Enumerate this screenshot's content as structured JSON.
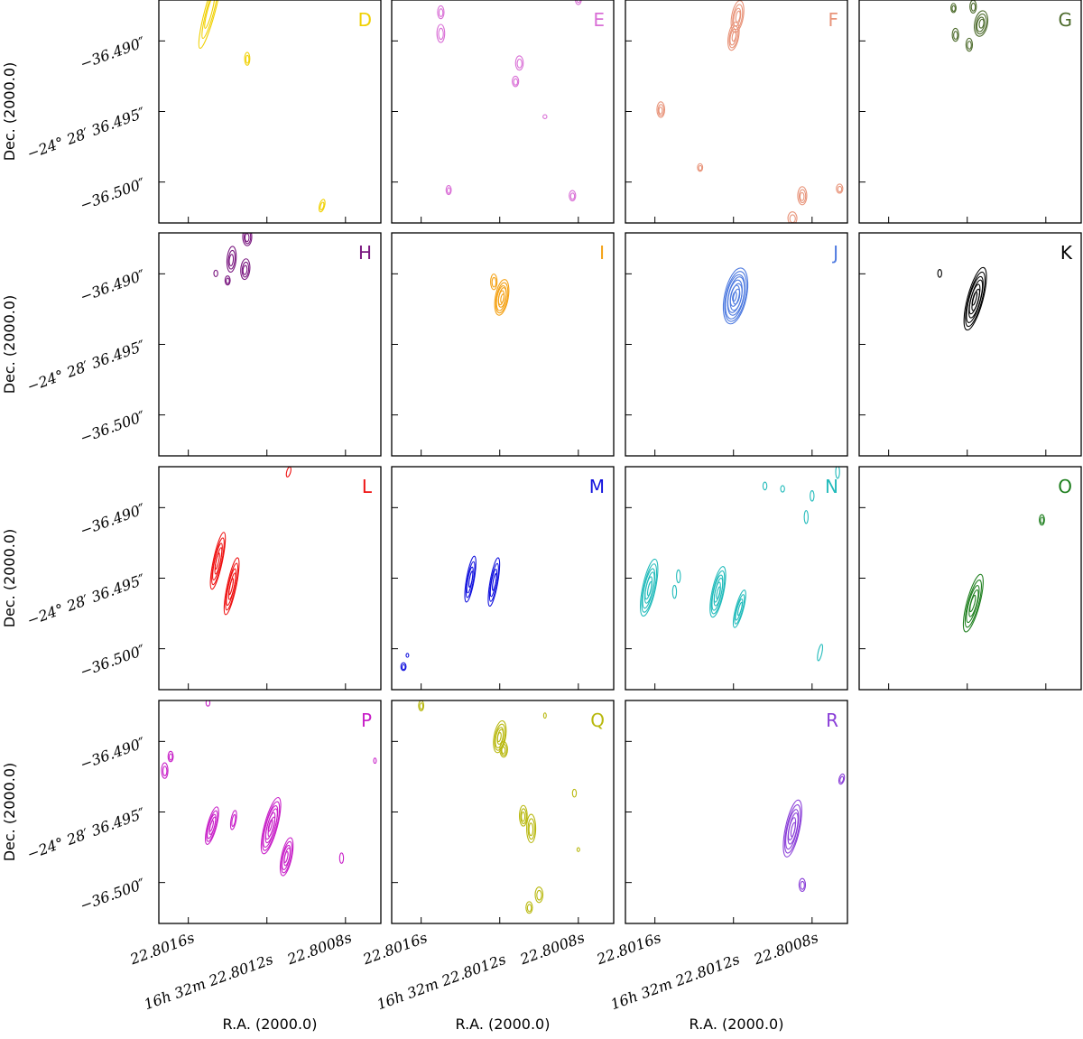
{
  "chart_data": {
    "type": "contour-grid",
    "xlabel": "R.A. (2000.0)",
    "ylabel": "Dec. (2000.0)",
    "x_ticks": [
      {
        "value": 22.8016,
        "label": "22.8016s"
      },
      {
        "value": 22.8012,
        "label": "16h 32m 22.8012s"
      },
      {
        "value": 22.8008,
        "label": "22.8008s"
      }
    ],
    "y_ticks": [
      {
        "value": -36.49,
        "label": "−36.490″"
      },
      {
        "value": -36.495,
        "label": "−24° 28′ 36.495″"
      },
      {
        "value": -36.5,
        "label": "−36.500″"
      }
    ],
    "xlim": [
      22.80175,
      22.80062
    ],
    "ylim": [
      -36.5029,
      -36.4871
    ],
    "panels": [
      {
        "label": "D",
        "color": "#f0d000",
        "sources": [
          {
            "ra": 22.80149,
            "dec": -36.4879,
            "width": 0.8,
            "length": 6,
            "angle": 15,
            "levels": 3
          },
          {
            "ra": 22.8013,
            "dec": -36.4913,
            "width": 0.4,
            "length": 1,
            "angle": 0,
            "levels": 2
          },
          {
            "ra": 22.80092,
            "dec": -36.5017,
            "width": 0.4,
            "length": 1,
            "angle": 15,
            "levels": 2
          }
        ]
      },
      {
        "label": "E",
        "color": "#d96fd6",
        "sources": [
          {
            "ra": 22.8015,
            "dec": -36.488,
            "width": 0.5,
            "length": 1,
            "angle": 0,
            "levels": 2
          },
          {
            "ra": 22.8015,
            "dec": -36.4895,
            "width": 0.6,
            "length": 1.4,
            "angle": 0,
            "levels": 2
          },
          {
            "ra": 22.8011,
            "dec": -36.4916,
            "width": 0.6,
            "length": 1.1,
            "angle": 0,
            "levels": 2
          },
          {
            "ra": 22.80112,
            "dec": -36.4929,
            "width": 0.5,
            "length": 0.8,
            "angle": 0,
            "levels": 2
          },
          {
            "ra": 22.80097,
            "dec": -36.4954,
            "width": 0.3,
            "length": 0.3,
            "angle": 0,
            "levels": 1
          },
          {
            "ra": 22.8008,
            "dec": -36.487,
            "width": 0.5,
            "length": 1,
            "angle": 0,
            "levels": 2
          },
          {
            "ra": 22.80146,
            "dec": -36.5006,
            "width": 0.4,
            "length": 0.7,
            "angle": 0,
            "levels": 2
          },
          {
            "ra": 22.80083,
            "dec": -36.501,
            "width": 0.5,
            "length": 0.8,
            "angle": 0,
            "levels": 2
          }
        ]
      },
      {
        "label": "F",
        "color": "#e8947a",
        "sources": [
          {
            "ra": 22.80118,
            "dec": -36.4883,
            "width": 0.9,
            "length": 2.5,
            "angle": 10,
            "levels": 4
          },
          {
            "ra": 22.8012,
            "dec": -36.4897,
            "width": 0.8,
            "length": 2.2,
            "angle": 10,
            "levels": 4
          },
          {
            "ra": 22.80157,
            "dec": -36.4949,
            "width": 0.6,
            "length": 1.2,
            "angle": 0,
            "levels": 3
          },
          {
            "ra": 22.80137,
            "dec": -36.499,
            "width": 0.4,
            "length": 0.6,
            "angle": 0,
            "levels": 2
          },
          {
            "ra": 22.80085,
            "dec": -36.501,
            "width": 0.7,
            "length": 1.4,
            "angle": 0,
            "levels": 3
          },
          {
            "ra": 22.8009,
            "dec": -36.5026,
            "width": 0.7,
            "length": 1,
            "angle": 0,
            "levels": 2
          },
          {
            "ra": 22.80066,
            "dec": -36.5005,
            "width": 0.5,
            "length": 0.7,
            "angle": 0,
            "levels": 2
          }
        ]
      },
      {
        "label": "G",
        "color": "#4d6b2c",
        "sources": [
          {
            "ra": 22.80117,
            "dec": -36.4876,
            "width": 0.5,
            "length": 1,
            "angle": 0,
            "levels": 2
          },
          {
            "ra": 22.80127,
            "dec": -36.4877,
            "width": 0.4,
            "length": 0.7,
            "angle": 0,
            "levels": 2
          },
          {
            "ra": 22.80113,
            "dec": -36.4888,
            "width": 1.0,
            "length": 2.0,
            "angle": 10,
            "levels": 4
          },
          {
            "ra": 22.80126,
            "dec": -36.4896,
            "width": 0.5,
            "length": 1,
            "angle": 0,
            "levels": 2
          },
          {
            "ra": 22.80119,
            "dec": -36.4903,
            "width": 0.5,
            "length": 1,
            "angle": 0,
            "levels": 2
          }
        ]
      },
      {
        "label": "H",
        "color": "#7a1880",
        "sources": [
          {
            "ra": 22.8013,
            "dec": -36.4874,
            "width": 0.7,
            "length": 1.4,
            "angle": 0,
            "levels": 3
          },
          {
            "ra": 22.80138,
            "dec": -36.489,
            "width": 0.7,
            "length": 2.0,
            "angle": 5,
            "levels": 3
          },
          {
            "ra": 22.80131,
            "dec": -36.4897,
            "width": 0.7,
            "length": 1.6,
            "angle": 5,
            "levels": 3
          },
          {
            "ra": 22.8014,
            "dec": -36.4905,
            "width": 0.4,
            "length": 0.7,
            "angle": 0,
            "levels": 2
          },
          {
            "ra": 22.80146,
            "dec": -36.49,
            "width": 0.3,
            "length": 0.5,
            "angle": 0,
            "levels": 1
          }
        ]
      },
      {
        "label": "I",
        "color": "#f4a114",
        "sources": [
          {
            "ra": 22.80119,
            "dec": -36.4917,
            "width": 1.0,
            "length": 2.8,
            "angle": 10,
            "levels": 6
          },
          {
            "ra": 22.80123,
            "dec": -36.4906,
            "width": 0.5,
            "length": 1.2,
            "angle": 0,
            "levels": 2
          }
        ]
      },
      {
        "label": "J",
        "color": "#4f7be0",
        "sources": [
          {
            "ra": 22.80119,
            "dec": -36.4916,
            "width": 1.7,
            "length": 4.4,
            "angle": 12,
            "levels": 9
          }
        ]
      },
      {
        "label": "K",
        "color": "#000000",
        "sources": [
          {
            "ra": 22.80116,
            "dec": -36.4918,
            "width": 1.2,
            "length": 5.0,
            "angle": 15,
            "levels": 7
          },
          {
            "ra": 22.80134,
            "dec": -36.49,
            "width": 0.3,
            "length": 0.6,
            "angle": 0,
            "levels": 1
          }
        ]
      },
      {
        "label": "L",
        "color": "#ee1111",
        "sources": [
          {
            "ra": 22.80145,
            "dec": -36.4938,
            "width": 0.7,
            "length": 4.5,
            "angle": 12,
            "levels": 5
          },
          {
            "ra": 22.80138,
            "dec": -36.4956,
            "width": 0.7,
            "length": 4.5,
            "angle": 12,
            "levels": 5
          },
          {
            "ra": 22.80109,
            "dec": -36.4875,
            "width": 0.3,
            "length": 0.8,
            "angle": 15,
            "levels": 1
          }
        ]
      },
      {
        "label": "M",
        "color": "#1111dd",
        "sources": [
          {
            "ra": 22.80135,
            "dec": -36.4951,
            "width": 0.6,
            "length": 3.6,
            "angle": 10,
            "levels": 4
          },
          {
            "ra": 22.80123,
            "dec": -36.4953,
            "width": 0.6,
            "length": 3.8,
            "angle": 10,
            "levels": 4
          },
          {
            "ra": 22.80169,
            "dec": -36.5013,
            "width": 0.4,
            "length": 0.6,
            "angle": 0,
            "levels": 2
          },
          {
            "ra": 22.80167,
            "dec": -36.5005,
            "width": 0.2,
            "length": 0.3,
            "angle": 0,
            "levels": 1
          }
        ]
      },
      {
        "label": "N",
        "color": "#22bbbb",
        "sources": [
          {
            "ra": 22.80163,
            "dec": -36.4957,
            "width": 1.0,
            "length": 4.5,
            "angle": 12,
            "levels": 6
          },
          {
            "ra": 22.80148,
            "dec": -36.4949,
            "width": 0.3,
            "length": 1.0,
            "angle": 0,
            "levels": 1
          },
          {
            "ra": 22.8015,
            "dec": -36.496,
            "width": 0.3,
            "length": 1.0,
            "angle": 0,
            "levels": 1
          },
          {
            "ra": 22.80128,
            "dec": -36.496,
            "width": 0.9,
            "length": 4.0,
            "angle": 12,
            "levels": 6
          },
          {
            "ra": 22.80117,
            "dec": -36.4972,
            "width": 0.6,
            "length": 3.0,
            "angle": 15,
            "levels": 4
          },
          {
            "ra": 22.80104,
            "dec": -36.4885,
            "width": 0.3,
            "length": 0.6,
            "angle": 0,
            "levels": 1
          },
          {
            "ra": 22.80095,
            "dec": -36.4887,
            "width": 0.3,
            "length": 0.5,
            "angle": 0,
            "levels": 1
          },
          {
            "ra": 22.8008,
            "dec": -36.4892,
            "width": 0.3,
            "length": 0.8,
            "angle": 0,
            "levels": 1
          },
          {
            "ra": 22.80083,
            "dec": -36.4907,
            "width": 0.3,
            "length": 1.0,
            "angle": 0,
            "levels": 1
          },
          {
            "ra": 22.80067,
            "dec": -36.4875,
            "width": 0.3,
            "length": 1.0,
            "angle": 0,
            "levels": 1
          },
          {
            "ra": 22.80076,
            "dec": -36.5003,
            "width": 0.3,
            "length": 1.3,
            "angle": 12,
            "levels": 1
          }
        ]
      },
      {
        "label": "O",
        "color": "#1e7f1e",
        "sources": [
          {
            "ra": 22.80117,
            "dec": -36.4968,
            "width": 1.0,
            "length": 4.6,
            "angle": 15,
            "levels": 5
          },
          {
            "ra": 22.80082,
            "dec": -36.4909,
            "width": 0.4,
            "length": 0.8,
            "angle": 0,
            "levels": 2
          }
        ]
      },
      {
        "label": "P",
        "color": "#c820c8",
        "sources": [
          {
            "ra": 22.8015,
            "dec": -36.4873,
            "width": 0.3,
            "length": 0.5,
            "angle": 0,
            "levels": 1
          },
          {
            "ra": 22.80169,
            "dec": -36.4911,
            "width": 0.4,
            "length": 0.8,
            "angle": 0,
            "levels": 2
          },
          {
            "ra": 22.80172,
            "dec": -36.4921,
            "width": 0.5,
            "length": 1.2,
            "angle": 0,
            "levels": 2
          },
          {
            "ra": 22.80148,
            "dec": -36.496,
            "width": 0.7,
            "length": 3.0,
            "angle": 15,
            "levels": 5
          },
          {
            "ra": 22.80137,
            "dec": -36.4956,
            "width": 0.4,
            "length": 1.5,
            "angle": 10,
            "levels": 2
          },
          {
            "ra": 22.80118,
            "dec": -36.496,
            "width": 1.0,
            "length": 4.5,
            "angle": 15,
            "levels": 7
          },
          {
            "ra": 22.8011,
            "dec": -36.4982,
            "width": 0.8,
            "length": 3.0,
            "angle": 12,
            "levels": 5
          },
          {
            "ra": 22.80082,
            "dec": -36.4983,
            "width": 0.3,
            "length": 0.8,
            "angle": 0,
            "levels": 1
          },
          {
            "ra": 22.80065,
            "dec": -36.4914,
            "width": 0.2,
            "length": 0.4,
            "angle": 0,
            "levels": 1
          }
        ]
      },
      {
        "label": "Q",
        "color": "#b8b80e",
        "sources": [
          {
            "ra": 22.8016,
            "dec": -36.4875,
            "width": 0.4,
            "length": 0.8,
            "angle": 0,
            "levels": 2
          },
          {
            "ra": 22.8012,
            "dec": -36.4897,
            "width": 0.9,
            "length": 2.5,
            "angle": 10,
            "levels": 5
          },
          {
            "ra": 22.80118,
            "dec": -36.4906,
            "width": 0.6,
            "length": 1.2,
            "angle": 0,
            "levels": 3
          },
          {
            "ra": 22.80097,
            "dec": -36.4882,
            "width": 0.2,
            "length": 0.4,
            "angle": 0,
            "levels": 1
          },
          {
            "ra": 22.80082,
            "dec": -36.4937,
            "width": 0.3,
            "length": 0.6,
            "angle": 0,
            "levels": 1
          },
          {
            "ra": 22.80108,
            "dec": -36.4953,
            "width": 0.6,
            "length": 1.6,
            "angle": 0,
            "levels": 3
          },
          {
            "ra": 22.80104,
            "dec": -36.4962,
            "width": 0.7,
            "length": 2.2,
            "angle": 0,
            "levels": 3
          },
          {
            "ra": 22.801,
            "dec": -36.5009,
            "width": 0.6,
            "length": 1.2,
            "angle": 0,
            "levels": 2
          },
          {
            "ra": 22.80105,
            "dec": -36.5018,
            "width": 0.5,
            "length": 0.9,
            "angle": 0,
            "levels": 2
          },
          {
            "ra": 22.8008,
            "dec": -36.4977,
            "width": 0.2,
            "length": 0.3,
            "angle": 0,
            "levels": 1
          }
        ]
      },
      {
        "label": "R",
        "color": "#8a3fd8",
        "sources": [
          {
            "ra": 22.8009,
            "dec": -36.4962,
            "width": 1.1,
            "length": 4.5,
            "angle": 12,
            "levels": 6
          },
          {
            "ra": 22.80085,
            "dec": -36.5002,
            "width": 0.5,
            "length": 1.0,
            "angle": 0,
            "levels": 2
          },
          {
            "ra": 22.80065,
            "dec": -36.4927,
            "width": 0.4,
            "length": 0.8,
            "angle": 15,
            "levels": 2
          }
        ]
      }
    ]
  }
}
